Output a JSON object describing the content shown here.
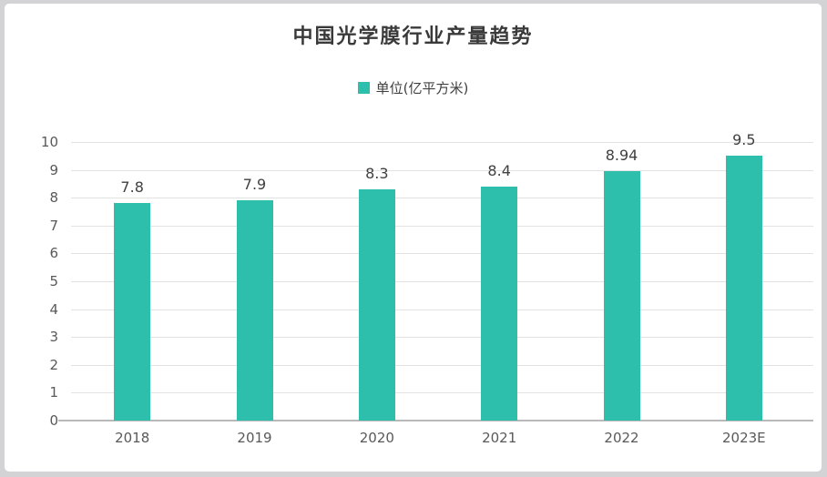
{
  "chart_data": {
    "type": "bar",
    "title": "中国光学膜行业产量趋势",
    "legend": [
      {
        "label": "单位(亿平方米)"
      }
    ],
    "legend_position": "top",
    "categories": [
      "2018",
      "2019",
      "2020",
      "2021",
      "2022",
      "2023E"
    ],
    "values": [
      7.8,
      7.9,
      8.3,
      8.4,
      8.94,
      9.5
    ],
    "value_labels": [
      "7.8",
      "7.9",
      "8.3",
      "8.4",
      "8.94",
      "9.5"
    ],
    "ylim": [
      0,
      10
    ],
    "ytick_step": 1,
    "grid": true,
    "xlabel": "",
    "ylabel": ""
  },
  "colors": {
    "bar": "#2ebeac",
    "title_text": "#3a3a3a",
    "axis_text": "#595959",
    "value_text": "#404040",
    "gridline": "#e3e3e3",
    "axis_line": "#b9b9b9",
    "frame": "#d3d3d5",
    "background": "#ffffff"
  }
}
